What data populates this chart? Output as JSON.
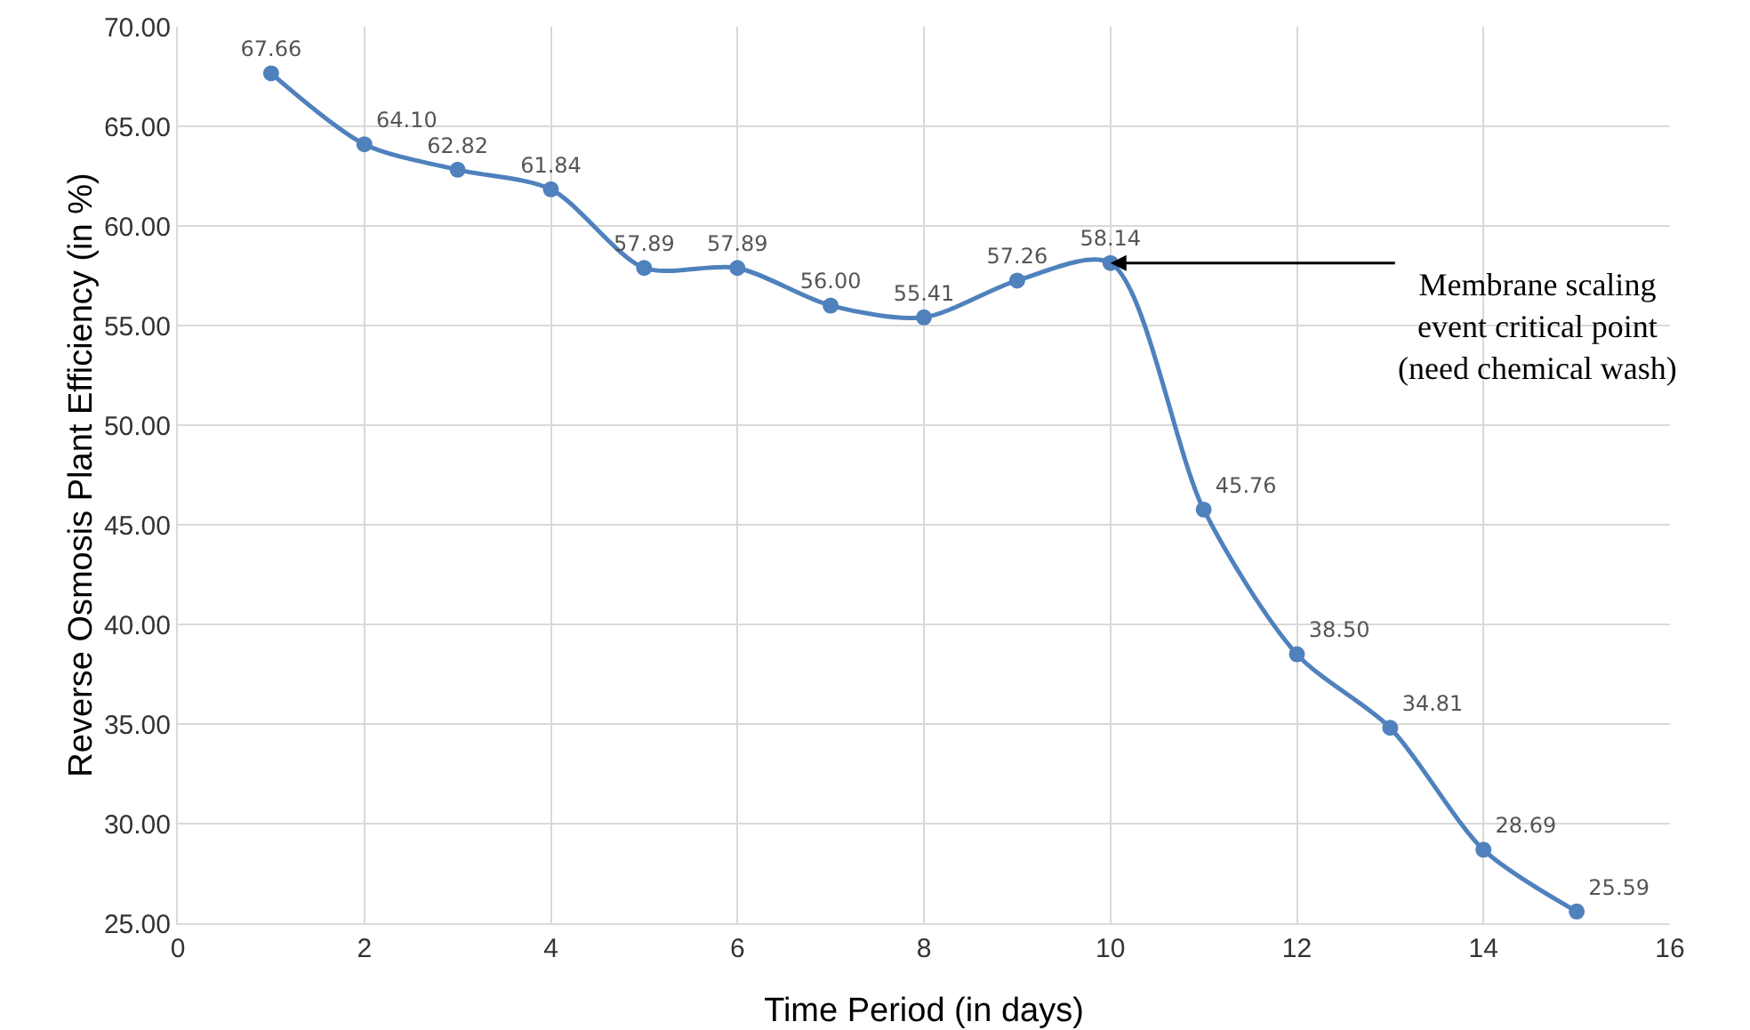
{
  "chart_data": {
    "type": "line",
    "xlabel": "Time Period (in days)",
    "ylabel": "Reverse Osmosis Plant Efficiency (in %)",
    "x": [
      1,
      2,
      3,
      4,
      5,
      6,
      7,
      8,
      9,
      10,
      11,
      12,
      13,
      14,
      15
    ],
    "series": [
      {
        "color": "#4f81bd",
        "values": [
          67.66,
          64.1,
          62.82,
          61.84,
          57.89,
          57.89,
          56.0,
          55.41,
          57.26,
          58.14,
          45.76,
          38.5,
          34.81,
          28.69,
          25.59
        ],
        "value_labels": [
          "67.66",
          "64.10",
          "62.82",
          "61.84",
          "57.89",
          "57.89",
          "56.00",
          "55.41",
          "57.26",
          "58.14",
          "45.76",
          "38.50",
          "34.81",
          "28.69",
          "25.59"
        ]
      }
    ],
    "xlim": [
      0,
      16
    ],
    "xticks": [
      0,
      2,
      4,
      6,
      8,
      10,
      12,
      14,
      16
    ],
    "ylim": [
      25,
      70
    ],
    "yticks": [
      {
        "value": 25,
        "label": "25.00"
      },
      {
        "value": 30,
        "label": "30.00"
      },
      {
        "value": 35,
        "label": "35.00"
      },
      {
        "value": 40,
        "label": "40.00"
      },
      {
        "value": 45,
        "label": "45.00"
      },
      {
        "value": 50,
        "label": "50.00"
      },
      {
        "value": 55,
        "label": "55.00"
      },
      {
        "value": 60,
        "label": "60.00"
      },
      {
        "value": 65,
        "label": "65.00"
      },
      {
        "value": 70,
        "label": "70.00"
      }
    ],
    "grid": true,
    "marker": "circle",
    "line_style": "solid",
    "annotations": [
      {
        "text": "Membrane scaling event critical point (need chemical wash)",
        "x": 10,
        "y": 58.14
      }
    ]
  }
}
